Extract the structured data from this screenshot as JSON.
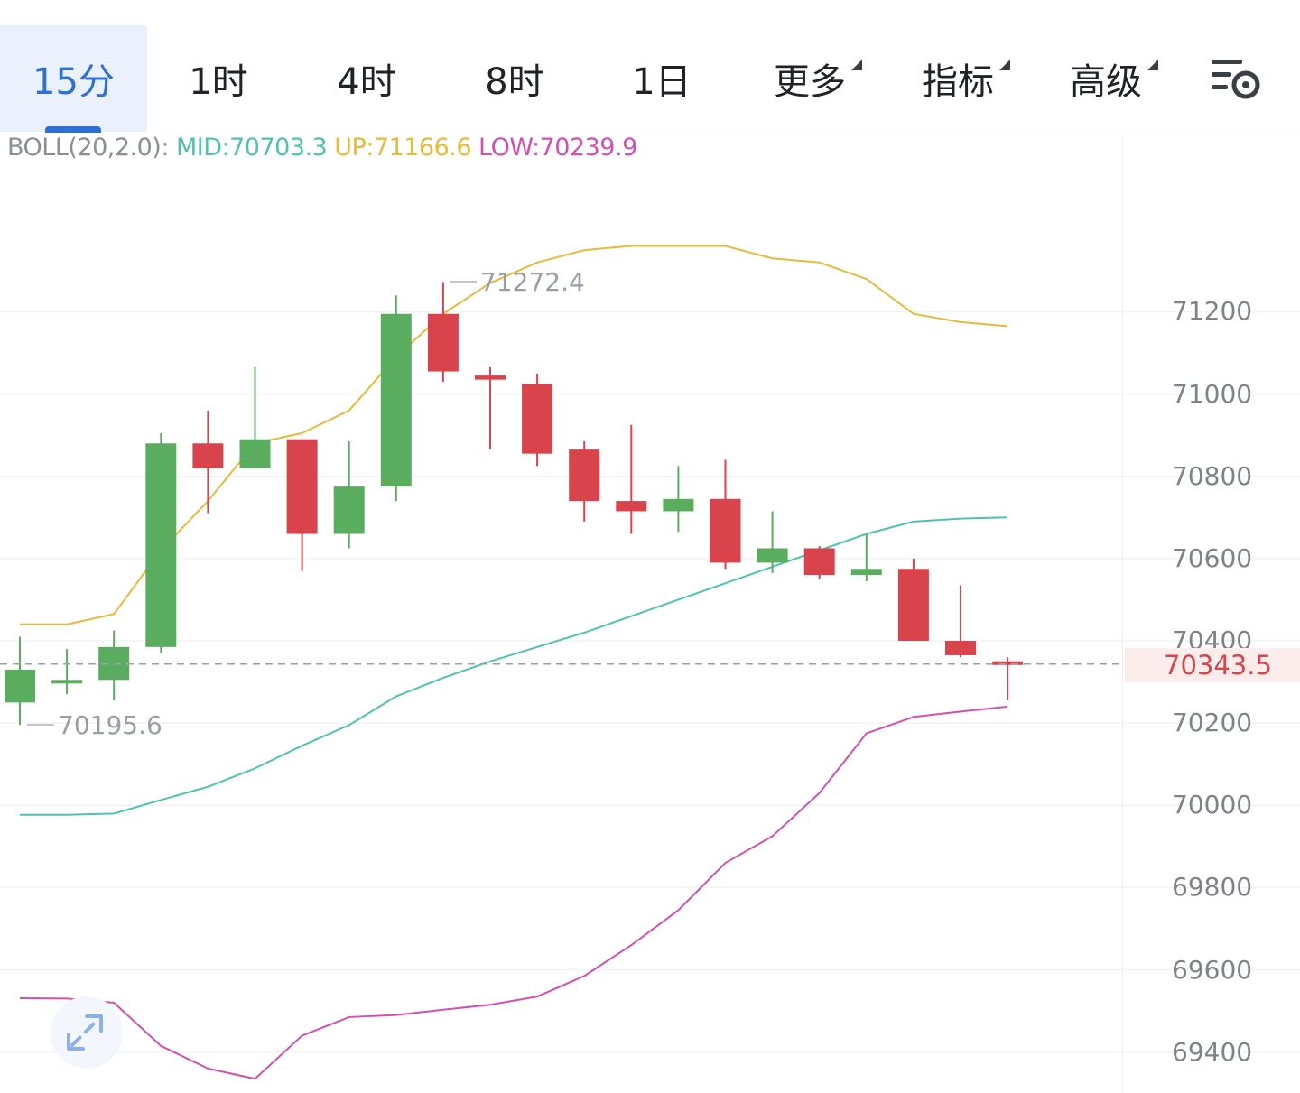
{
  "toolbar": {
    "tabs": [
      {
        "label": "15分",
        "active": true
      },
      {
        "label": "1时",
        "active": false
      },
      {
        "label": "4时",
        "active": false
      },
      {
        "label": "8时",
        "active": false
      },
      {
        "label": "1日",
        "active": false
      }
    ],
    "menus": [
      {
        "label": "更多"
      },
      {
        "label": "指标"
      },
      {
        "label": "高级"
      }
    ],
    "settings_icon": "chart-settings-icon",
    "accent_color": "#2f6fd8"
  },
  "indicator": {
    "name": "BOLL(20,2.0):",
    "mid": "MID:70703.3",
    "up": "UP:71166.6",
    "low": "LOW:70239.9",
    "colors": {
      "name": "#8a8f95",
      "mid": "#4fc3b0",
      "up": "#e9b93c",
      "low": "#d24fb4"
    }
  },
  "y_axis": {
    "ticks": [
      "71200",
      "71000",
      "70800",
      "70600",
      "70400",
      "70200",
      "70000",
      "69800",
      "69600",
      "69400"
    ]
  },
  "current_price": "70343.5",
  "annotations": {
    "high": "71272.4",
    "low": "70195.6"
  },
  "expand_icon": "expand-arrows-icon",
  "colors": {
    "up": "#5aad5e",
    "down": "#d9434b"
  },
  "chart_data": {
    "type": "candlestick",
    "ylim": [
      69300,
      71450
    ],
    "current_price": 70343.5,
    "candles": [
      {
        "o": 70250,
        "h": 70410,
        "l": 70195.6,
        "c": 70330,
        "dir": "up"
      },
      {
        "o": 70300,
        "h": 70380,
        "l": 70270,
        "c": 70305,
        "dir": "up"
      },
      {
        "o": 70305,
        "h": 70425,
        "l": 70255,
        "c": 70385,
        "dir": "up"
      },
      {
        "o": 70385,
        "h": 70905,
        "l": 70370,
        "c": 70880,
        "dir": "up"
      },
      {
        "o": 70880,
        "h": 70960,
        "l": 70710,
        "c": 70820,
        "dir": "down"
      },
      {
        "o": 70820,
        "h": 71065,
        "l": 70820,
        "c": 70890,
        "dir": "up"
      },
      {
        "o": 70890,
        "h": 70890,
        "l": 70570,
        "c": 70660,
        "dir": "down"
      },
      {
        "o": 70660,
        "h": 70885,
        "l": 70625,
        "c": 70775,
        "dir": "up"
      },
      {
        "o": 70775,
        "h": 71240,
        "l": 70740,
        "c": 71195,
        "dir": "up"
      },
      {
        "o": 71195,
        "h": 71272.4,
        "l": 71030,
        "c": 71055,
        "dir": "down"
      },
      {
        "o": 71045,
        "h": 71065,
        "l": 70865,
        "c": 71035,
        "dir": "down"
      },
      {
        "o": 71025,
        "h": 71050,
        "l": 70825,
        "c": 70855,
        "dir": "down"
      },
      {
        "o": 70865,
        "h": 70885,
        "l": 70690,
        "c": 70740,
        "dir": "down"
      },
      {
        "o": 70740,
        "h": 70925,
        "l": 70660,
        "c": 70715,
        "dir": "down"
      },
      {
        "o": 70715,
        "h": 70825,
        "l": 70665,
        "c": 70745,
        "dir": "up"
      },
      {
        "o": 70745,
        "h": 70840,
        "l": 70575,
        "c": 70590,
        "dir": "down"
      },
      {
        "o": 70590,
        "h": 70715,
        "l": 70565,
        "c": 70625,
        "dir": "up"
      },
      {
        "o": 70625,
        "h": 70630,
        "l": 70550,
        "c": 70560,
        "dir": "down"
      },
      {
        "o": 70560,
        "h": 70660,
        "l": 70545,
        "c": 70575,
        "dir": "up"
      },
      {
        "o": 70575,
        "h": 70600,
        "l": 70400,
        "c": 70400,
        "dir": "down"
      },
      {
        "o": 70400,
        "h": 70535,
        "l": 70360,
        "c": 70365,
        "dir": "down"
      },
      {
        "o": 70350,
        "h": 70360,
        "l": 70255,
        "c": 70343.5,
        "dir": "down"
      }
    ],
    "series": [
      {
        "name": "UP",
        "values": [
          70440,
          70440,
          70465,
          70620,
          70740,
          70880,
          70905,
          70960,
          71090,
          71195,
          71270,
          71320,
          71350,
          71360,
          71360,
          71360,
          71330,
          71320,
          71280,
          71195,
          71175,
          71165
        ]
      },
      {
        "name": "MID",
        "values": [
          69977,
          69977,
          69980,
          70013,
          70045,
          70090,
          70145,
          70195,
          70265,
          70310,
          70350,
          70385,
          70420,
          70460,
          70500,
          70540,
          70580,
          70620,
          70660,
          70690,
          70697,
          70700
        ]
      },
      {
        "name": "LOW",
        "values": [
          69531,
          69530,
          69520,
          69415,
          69360,
          69335,
          69440,
          69485,
          69490,
          69503,
          69515,
          69535,
          69585,
          69660,
          69745,
          69860,
          69925,
          70030,
          70175,
          70215,
          70228,
          70240
        ]
      }
    ]
  }
}
